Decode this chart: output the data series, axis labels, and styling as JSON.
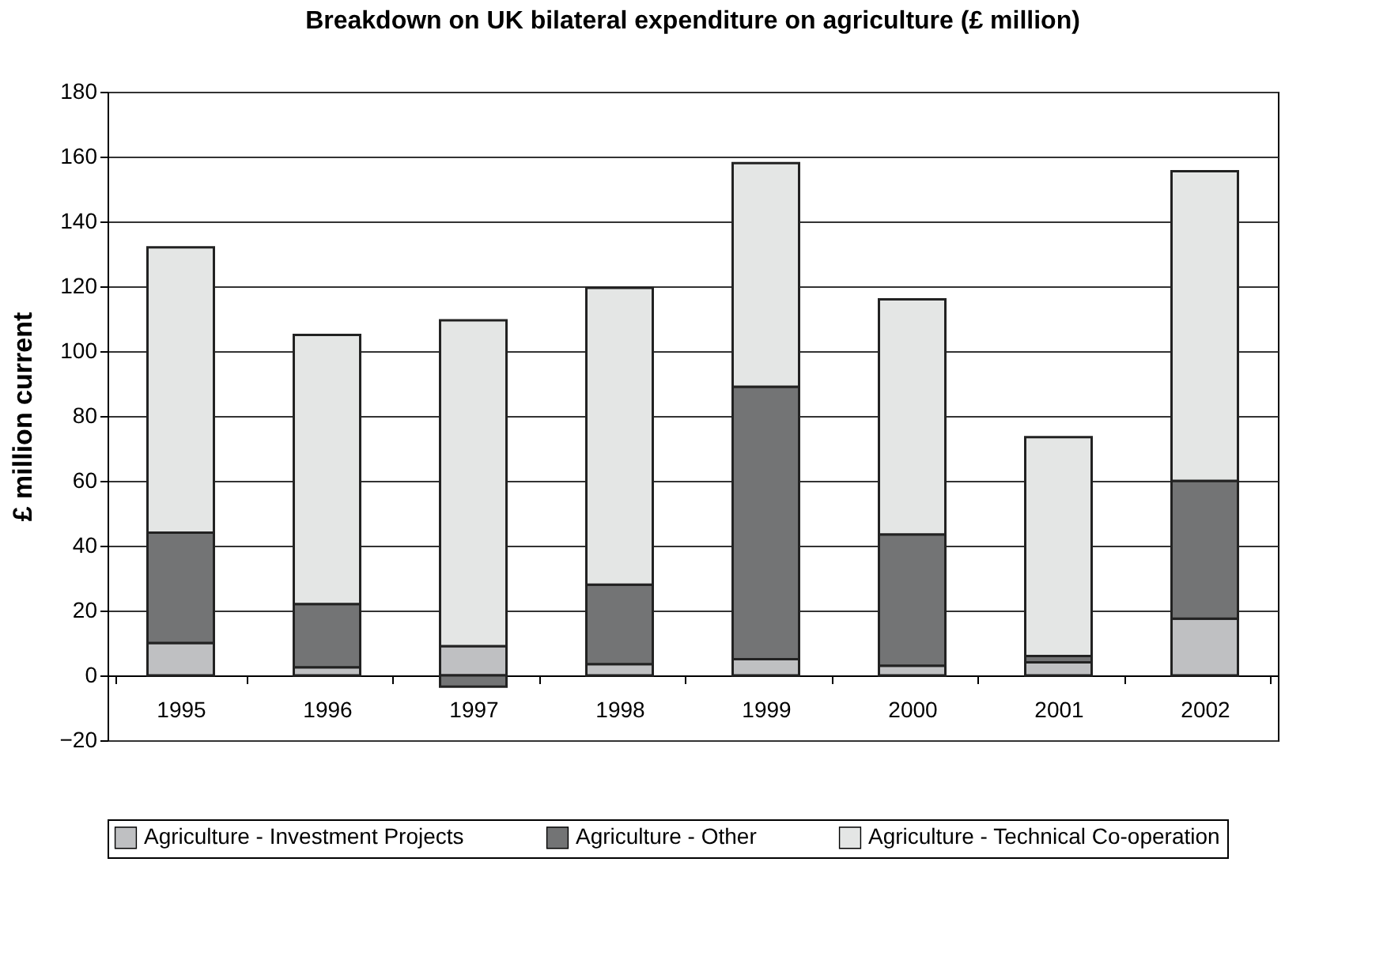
{
  "chart_data": {
    "type": "bar",
    "title": "Breakdown on UK bilateral expenditure on agriculture (£ million)",
    "ylabel": "£  million current",
    "categories": [
      "1995",
      "1996",
      "1997",
      "1998",
      "1999",
      "2000",
      "2001",
      "2002"
    ],
    "stacked": true,
    "series": [
      {
        "name": "Agriculture - Investment Projects",
        "color": "#bfc0c2",
        "values": [
          10,
          2.5,
          9,
          3.5,
          5,
          3,
          4,
          17.5
        ]
      },
      {
        "name": "Agriculture - Other",
        "color": "#737475",
        "values": [
          34,
          19.5,
          -3.5,
          24.5,
          84,
          40.5,
          2,
          42.5
        ]
      },
      {
        "name": "Agriculture - Technical Co-operation",
        "color": "#e4e6e5",
        "values": [
          88,
          83,
          100.5,
          91.5,
          69,
          72.5,
          67.5,
          95.5
        ]
      }
    ],
    "ylim": [
      -20,
      180
    ],
    "yticks": [
      -20,
      0,
      20,
      40,
      60,
      80,
      100,
      120,
      140,
      160,
      180
    ],
    "grid": "y",
    "legend": "bottom"
  }
}
